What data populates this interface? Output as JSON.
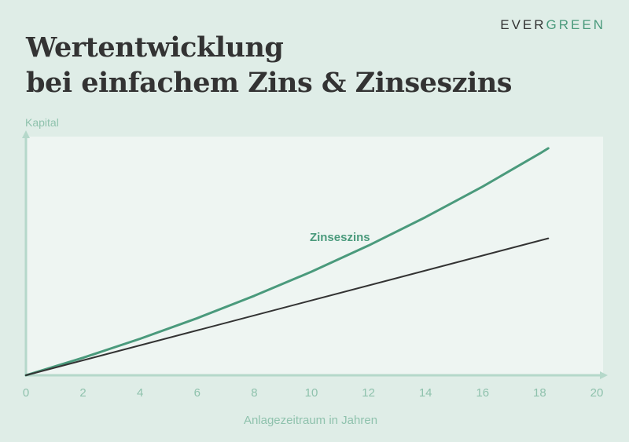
{
  "title": {
    "line1": "Wertentwicklung",
    "line2": "bei einfachem Zins & Zinseszins"
  },
  "brand": {
    "part1": "EVER",
    "part2": "GREEN"
  },
  "colors": {
    "background": "#dfede7",
    "plot_area": "#eef5f2",
    "axis": "#b5d8ca",
    "accent": "#4a9a7c",
    "dark": "#333333",
    "tick_text": "#8fc2ad"
  },
  "chart_data": {
    "type": "line",
    "xlabel": "Anlagezeitraum in Jahren",
    "ylabel": "Kapital",
    "xlim": [
      0,
      20
    ],
    "ylim": [
      0,
      2.1
    ],
    "x_ticks": [
      "0",
      "2",
      "4",
      "6",
      "8",
      "10",
      "12",
      "14",
      "16",
      "18",
      "20"
    ],
    "y_tick_labels_shown": false,
    "grid": false,
    "series": [
      {
        "name": "Zinseszins",
        "color": "#4a9a7c",
        "x": [
          0,
          2,
          4,
          6,
          8,
          10,
          12,
          14,
          16,
          18,
          18.3
        ],
        "y": [
          0,
          0.154,
          0.321,
          0.502,
          0.699,
          0.911,
          1.141,
          1.391,
          1.66,
          1.951,
          1.997
        ]
      },
      {
        "name": "",
        "color": "#333333",
        "x": [
          0,
          18.3
        ],
        "y": [
          0,
          1.205
        ]
      }
    ],
    "annotations": [
      {
        "text": "Zinseszins",
        "x": 11,
        "y": 1.18,
        "color": "#4a9a7c"
      }
    ]
  }
}
